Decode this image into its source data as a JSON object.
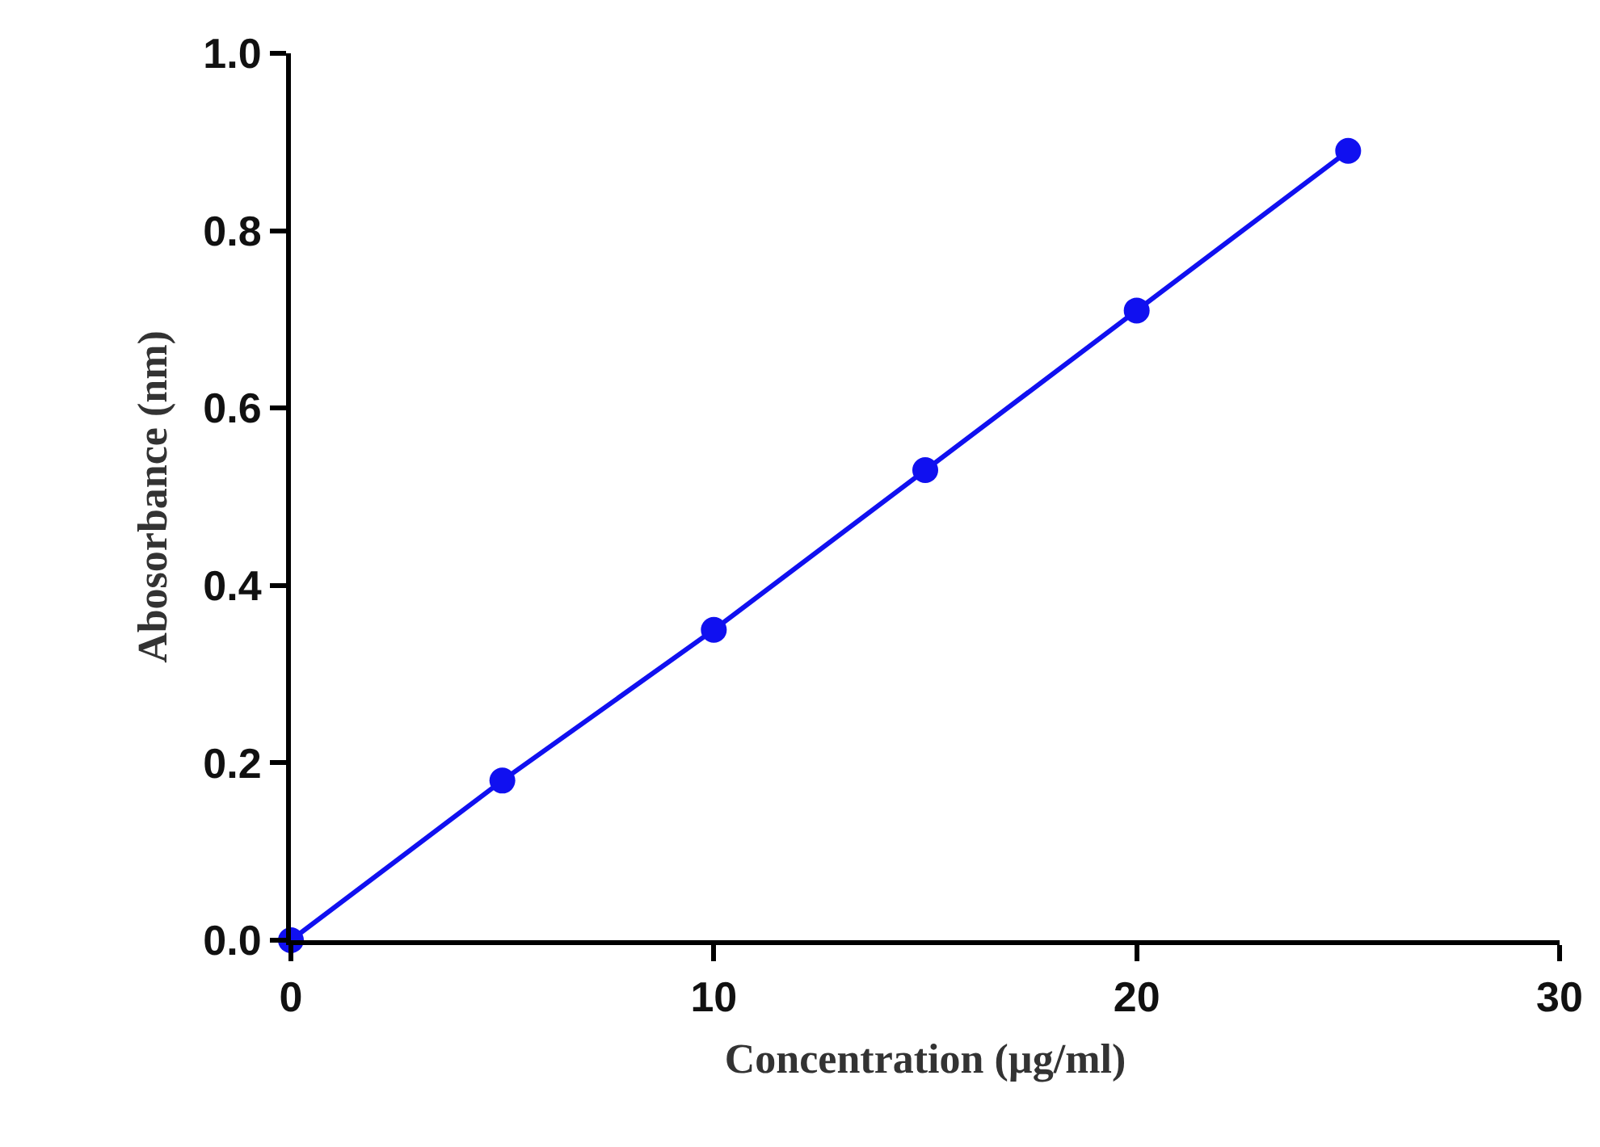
{
  "chart_data": {
    "type": "line",
    "xlabel": "Concentration (µg/ml)",
    "ylabel": "Abosorbance (nm)",
    "x": [
      0,
      5,
      10,
      15,
      20,
      25
    ],
    "series": [
      {
        "color": "#1010f0",
        "values": [
          0,
          0.18,
          0.35,
          0.53,
          0.71,
          0.89
        ]
      }
    ],
    "xlim": [
      0,
      30
    ],
    "xticks": [
      0,
      10,
      20,
      30
    ],
    "ylim": [
      0,
      1
    ],
    "yticks": [
      {
        "value": 0,
        "label": "0.0"
      },
      0.2,
      0.4,
      0.6,
      0.8,
      {
        "value": 1,
        "label": "1.0"
      }
    ],
    "marker": "circle",
    "line_style": "solid"
  }
}
